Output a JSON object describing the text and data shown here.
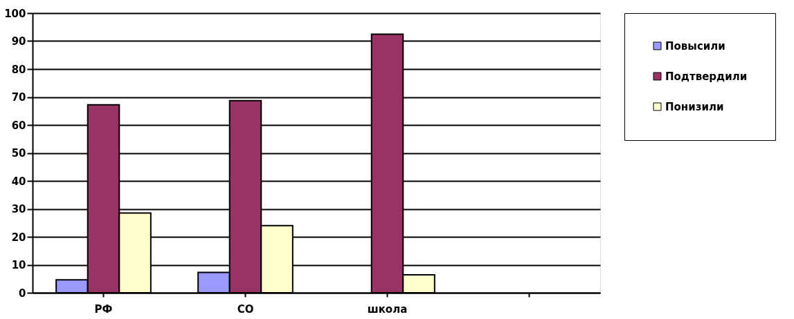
{
  "chart_data": {
    "type": "bar",
    "categories": [
      "РФ",
      "СО",
      "школа",
      null
    ],
    "series": [
      {
        "name": "Повысили",
        "color": "#9999ff",
        "values": [
          4.6,
          7.3,
          null,
          null
        ]
      },
      {
        "name": "Подтвердили",
        "color": "#993366",
        "values": [
          67.2,
          68.7,
          92.5,
          null
        ]
      },
      {
        "name": "Понизили",
        "color": "#ffffcc",
        "values": [
          28.5,
          24.0,
          6.4,
          null
        ]
      }
    ],
    "ylim": [
      0,
      100
    ],
    "yticks": [
      0,
      10,
      20,
      30,
      40,
      50,
      60,
      70,
      80,
      90,
      100
    ],
    "grid": "y",
    "legend": "right"
  }
}
